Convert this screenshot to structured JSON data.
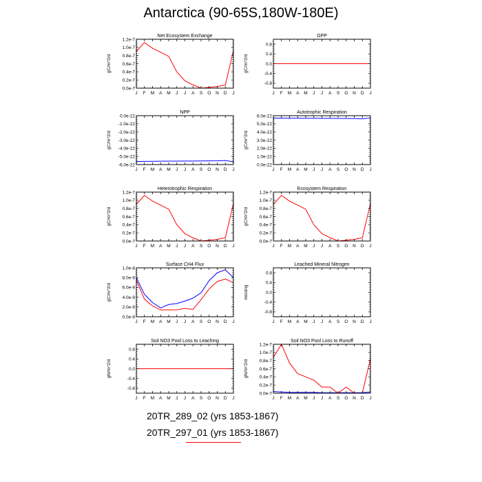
{
  "title": "Antarctica (90-65S,180W-180E)",
  "colors": {
    "run1": "#0000ff",
    "run2": "#ff0000",
    "axis": "#000000"
  },
  "months": [
    "J",
    "F",
    "M",
    "A",
    "M",
    "J",
    "J",
    "A",
    "S",
    "O",
    "N",
    "D",
    "J"
  ],
  "footer": {
    "run1_label": "20TR_289_02 (yrs 1853-1867)",
    "run2_label": "20TR_297_01 (yrs 1853-1867)"
  },
  "chart_data": [
    {
      "type": "line",
      "title": "Net Ecosystem Exchange",
      "ylabel": "gC/m^2/d",
      "ylim": [
        0,
        1.2e-07
      ],
      "yticks": [
        "0.0e-7",
        "0.2e-7",
        "0.4e-7",
        "0.6e-7",
        "0.8e-7",
        "1.0e-7",
        "1.2e-7"
      ],
      "ytick_values": [
        0,
        2e-08,
        4e-08,
        6e-08,
        8e-08,
        1e-07,
        1.2e-07
      ],
      "series": [
        {
          "color": "#0000ff",
          "values": [
            0,
            0,
            0,
            0,
            0,
            0,
            0,
            0,
            0,
            0,
            0,
            0,
            0
          ]
        },
        {
          "color": "#ff0000",
          "values": [
            9e-08,
            1.12e-07,
            9.8e-08,
            8.8e-08,
            7.8e-08,
            4e-08,
            1.8e-08,
            8e-09,
            0.0,
            2e-09,
            4e-09,
            8e-09,
            9.2e-08
          ]
        }
      ]
    },
    {
      "type": "line",
      "title": "GPP",
      "ylabel": "gC/m^2/d",
      "ylim": [
        -1,
        1
      ],
      "yticks": [
        "-0.8",
        "-0.4",
        "0.0",
        "0.4",
        "0.8"
      ],
      "ytick_values": [
        -0.8,
        -0.4,
        0,
        0.4,
        0.8
      ],
      "series": [
        {
          "color": "#0000ff",
          "values": [
            0,
            0,
            0,
            0,
            0,
            0,
            0,
            0,
            0,
            0,
            0,
            0,
            0
          ]
        },
        {
          "color": "#ff0000",
          "values": [
            0,
            0,
            0,
            0,
            0,
            0,
            0,
            0,
            0,
            0,
            0,
            0,
            0
          ]
        }
      ]
    },
    {
      "type": "line",
      "title": "NPP",
      "ylabel": "gC/m^2/d",
      "ylim": [
        -6e-22,
        0
      ],
      "yticks": [
        "-6.0e-22",
        "-5.0e-22",
        "-4.0e-22",
        "-3.0e-22",
        "-2.0e-22",
        "-1.0e-22",
        "0.0e-22"
      ],
      "ytick_values": [
        -6e-22,
        -5e-22,
        -4e-22,
        -3e-22,
        -2e-22,
        -1e-22,
        0
      ],
      "series": [
        {
          "color": "#0000ff",
          "values": [
            -5.62e-22,
            -5.61e-22,
            -5.6e-22,
            -5.59e-22,
            -5.58e-22,
            -5.58e-22,
            -5.57e-22,
            -5.57e-22,
            -5.56e-22,
            -5.55e-22,
            -5.54e-22,
            -5.5e-22,
            -5.65e-22
          ]
        },
        {
          "color": "#ff0000",
          "values": [
            0,
            0,
            0,
            0,
            0,
            0,
            0,
            0,
            0,
            0,
            0,
            0,
            0
          ]
        }
      ]
    },
    {
      "type": "line",
      "title": "Autotrophic Respiration",
      "ylabel": "gC/m^2/d",
      "ylim": [
        0,
        6e-22
      ],
      "yticks": [
        "0.0e-22",
        "1.0e-22",
        "2.0e-22",
        "3.0e-22",
        "4.0e-22",
        "5.0e-22",
        "6.0e-22"
      ],
      "ytick_values": [
        0,
        1e-22,
        2e-22,
        3e-22,
        4e-22,
        5e-22,
        6e-22
      ],
      "series": [
        {
          "color": "#0000ff",
          "values": [
            5.7e-22,
            5.69e-22,
            5.69e-22,
            5.68e-22,
            5.68e-22,
            5.68e-22,
            5.67e-22,
            5.67e-22,
            5.66e-22,
            5.66e-22,
            5.65e-22,
            5.62e-22,
            5.72e-22
          ]
        },
        {
          "color": "#ff0000",
          "values": [
            0,
            0,
            0,
            0,
            0,
            0,
            0,
            0,
            0,
            0,
            0,
            0,
            0
          ]
        }
      ]
    },
    {
      "type": "line",
      "title": "Heterotrophic Respiration",
      "ylabel": "gC/m^2/d",
      "ylim": [
        0,
        1.2e-07
      ],
      "yticks": [
        "0.0e-7",
        "0.2e-7",
        "0.4e-7",
        "0.6e-7",
        "0.8e-7",
        "1.0e-7",
        "1.2e-7"
      ],
      "ytick_values": [
        0,
        2e-08,
        4e-08,
        6e-08,
        8e-08,
        1e-07,
        1.2e-07
      ],
      "series": [
        {
          "color": "#0000ff",
          "values": [
            0,
            0,
            0,
            0,
            0,
            0,
            0,
            0,
            0,
            0,
            0,
            0,
            0
          ]
        },
        {
          "color": "#ff0000",
          "values": [
            9e-08,
            1.12e-07,
            9.8e-08,
            8.8e-08,
            7.8e-08,
            4e-08,
            1.8e-08,
            8e-09,
            0.0,
            2e-09,
            4e-09,
            8e-09,
            9.2e-08
          ]
        }
      ]
    },
    {
      "type": "line",
      "title": "Ecosystem Respiration",
      "ylabel": "gC/m^2/d",
      "ylim": [
        0,
        1.2e-07
      ],
      "yticks": [
        "0.0e-7",
        "0.2e-7",
        "0.4e-7",
        "0.6e-7",
        "0.8e-7",
        "1.0e-7",
        "1.2e-7"
      ],
      "ytick_values": [
        0,
        2e-08,
        4e-08,
        6e-08,
        8e-08,
        1e-07,
        1.2e-07
      ],
      "series": [
        {
          "color": "#0000ff",
          "values": [
            0,
            0,
            0,
            0,
            0,
            0,
            0,
            0,
            0,
            0,
            0,
            0,
            0
          ]
        },
        {
          "color": "#ff0000",
          "values": [
            9e-08,
            1.12e-07,
            9.8e-08,
            8.8e-08,
            7.8e-08,
            4e-08,
            1.8e-08,
            8e-09,
            0.0,
            2e-09,
            4e-09,
            8e-09,
            9.2e-08
          ]
        }
      ]
    },
    {
      "type": "line",
      "title": "Surface CH4 Flux",
      "ylabel": "gC/m^2/d",
      "ylim": [
        0,
        1e-08
      ],
      "yticks": [
        "0.0e-9",
        "2.0e-9",
        "4.0e-9",
        "6.0e-9",
        "8.0e-9",
        "1.0e-8"
      ],
      "ytick_values": [
        0,
        2e-09,
        4e-09,
        6e-09,
        8e-09,
        1e-08
      ],
      "series": [
        {
          "color": "#0000ff",
          "values": [
            8e-09,
            4.6e-09,
            2.9e-09,
            1.8e-09,
            2.5e-09,
            2.7e-09,
            3.2e-09,
            3.8e-09,
            4.9e-09,
            7.4e-09,
            9e-09,
            9.6e-09,
            8e-09
          ]
        },
        {
          "color": "#ff0000",
          "values": [
            7.5e-09,
            3.6e-09,
            2.2e-09,
            1.4e-09,
            1.4e-09,
            1.4e-09,
            1.7e-09,
            1.5e-09,
            3.5e-09,
            5.7e-09,
            7.2e-09,
            7.7e-09,
            7e-09
          ]
        }
      ]
    },
    {
      "type": "line",
      "title": "Leached Mineral Nitrogen",
      "ylabel": "missing",
      "ylim": [
        -1,
        1
      ],
      "yticks": [
        "-0.8",
        "-0.4",
        "0.0",
        "0.4",
        "0.8"
      ],
      "ytick_values": [
        -0.8,
        -0.4,
        0,
        0.4,
        0.8
      ],
      "series": []
    },
    {
      "type": "line",
      "title": "Soil NO3 Pool Loss to Leaching",
      "ylabel": "gN/m^2/d",
      "ylim": [
        -1,
        1
      ],
      "yticks": [
        "-0.8",
        "-0.4",
        "0.0",
        "0.4",
        "0.8"
      ],
      "ytick_values": [
        -0.8,
        -0.4,
        0,
        0.4,
        0.8
      ],
      "series": [
        {
          "color": "#0000ff",
          "values": [
            0,
            0,
            0,
            0,
            0,
            0,
            0,
            0,
            0,
            0,
            0,
            0,
            0
          ]
        },
        {
          "color": "#ff0000",
          "values": [
            0,
            0,
            0,
            0,
            0,
            0,
            0,
            0,
            0,
            0,
            0,
            0,
            0
          ]
        }
      ]
    },
    {
      "type": "line",
      "title": "Soil NO3 Pool Loss to Runoff",
      "ylabel": "gN/m^2/d",
      "ylim": [
        0,
        1.2e-07
      ],
      "yticks": [
        "0.0e-7",
        "0.2e-7",
        "0.4e-7",
        "0.6e-7",
        "0.8e-7",
        "1.0e-7",
        "1.2e-7"
      ],
      "ytick_values": [
        0,
        2e-08,
        4e-08,
        6e-08,
        8e-08,
        1e-07,
        1.2e-07
      ],
      "series": [
        {
          "color": "#0000ff",
          "values": [
            4e-09,
            3e-09,
            2e-09,
            2e-09,
            2e-09,
            2e-09,
            1e-09,
            1e-09,
            1e-09,
            1e-09,
            1e-09,
            1e-09,
            3e-09
          ]
        },
        {
          "color": "#ff0000",
          "values": [
            8.8e-08,
            1.2e-07,
            7.4e-08,
            4.8e-08,
            4e-08,
            3.2e-08,
            1.5e-08,
            1.5e-08,
            0.0,
            1.5e-08,
            0.0,
            0.0,
            8.5e-08
          ]
        }
      ]
    }
  ]
}
